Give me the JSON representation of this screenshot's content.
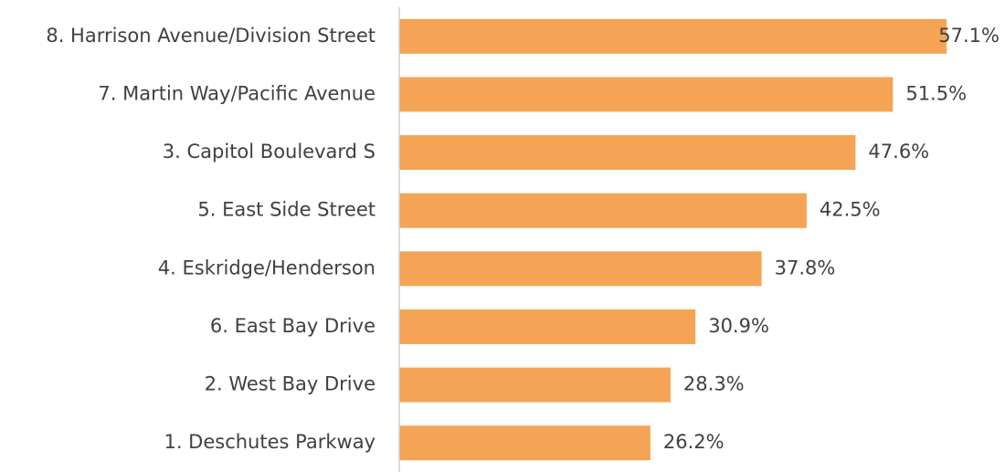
{
  "chart_data": {
    "type": "bar",
    "orientation": "horizontal",
    "categories": [
      "8. Harrison Avenue/Division Street",
      "7. Martin Way/Pacific Avenue",
      "3. Capitol Boulevard S",
      "5. East Side Street",
      "4. Eskridge/Henderson",
      "6. East Bay Drive",
      "2. West Bay Drive",
      "1. Deschutes Parkway"
    ],
    "values": [
      57.1,
      51.5,
      47.6,
      42.5,
      37.8,
      30.9,
      28.3,
      26.2
    ],
    "value_labels": [
      "57.1%",
      "51.5%",
      "47.6%",
      "42.5%",
      "37.8%",
      "30.9%",
      "28.3%",
      "26.2%"
    ],
    "color": "#f4a454",
    "xlim": [
      0,
      63
    ]
  }
}
